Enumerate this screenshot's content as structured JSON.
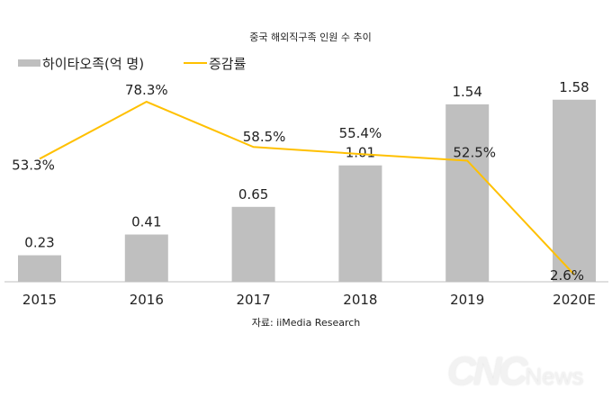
{
  "chart_data": {
    "type": "bar+line",
    "title": "중국 해외직구족 인원 수 추이",
    "categories": [
      "2015",
      "2016",
      "2017",
      "2018",
      "2019",
      "2020E"
    ],
    "series": [
      {
        "name": "하이타오족(억 명)",
        "type": "bar",
        "color": "#bfbfbf",
        "values": [
          0.23,
          0.41,
          0.65,
          1.01,
          1.54,
          1.58
        ],
        "labels": [
          "0.23",
          "0.41",
          "0.65",
          "1.01",
          "1.54",
          "1.58"
        ]
      },
      {
        "name": "증감률",
        "type": "line",
        "color": "#ffc000",
        "values": [
          53.3,
          78.3,
          58.5,
          55.4,
          52.5,
          2.6
        ],
        "labels": [
          "53.3%",
          "78.3%",
          "58.5%",
          "55.4%",
          "52.5%",
          "2.6%"
        ]
      }
    ],
    "legend": "top-left",
    "grid": false
  },
  "source": "자료: iiMedia Research",
  "watermark": "CNC News"
}
